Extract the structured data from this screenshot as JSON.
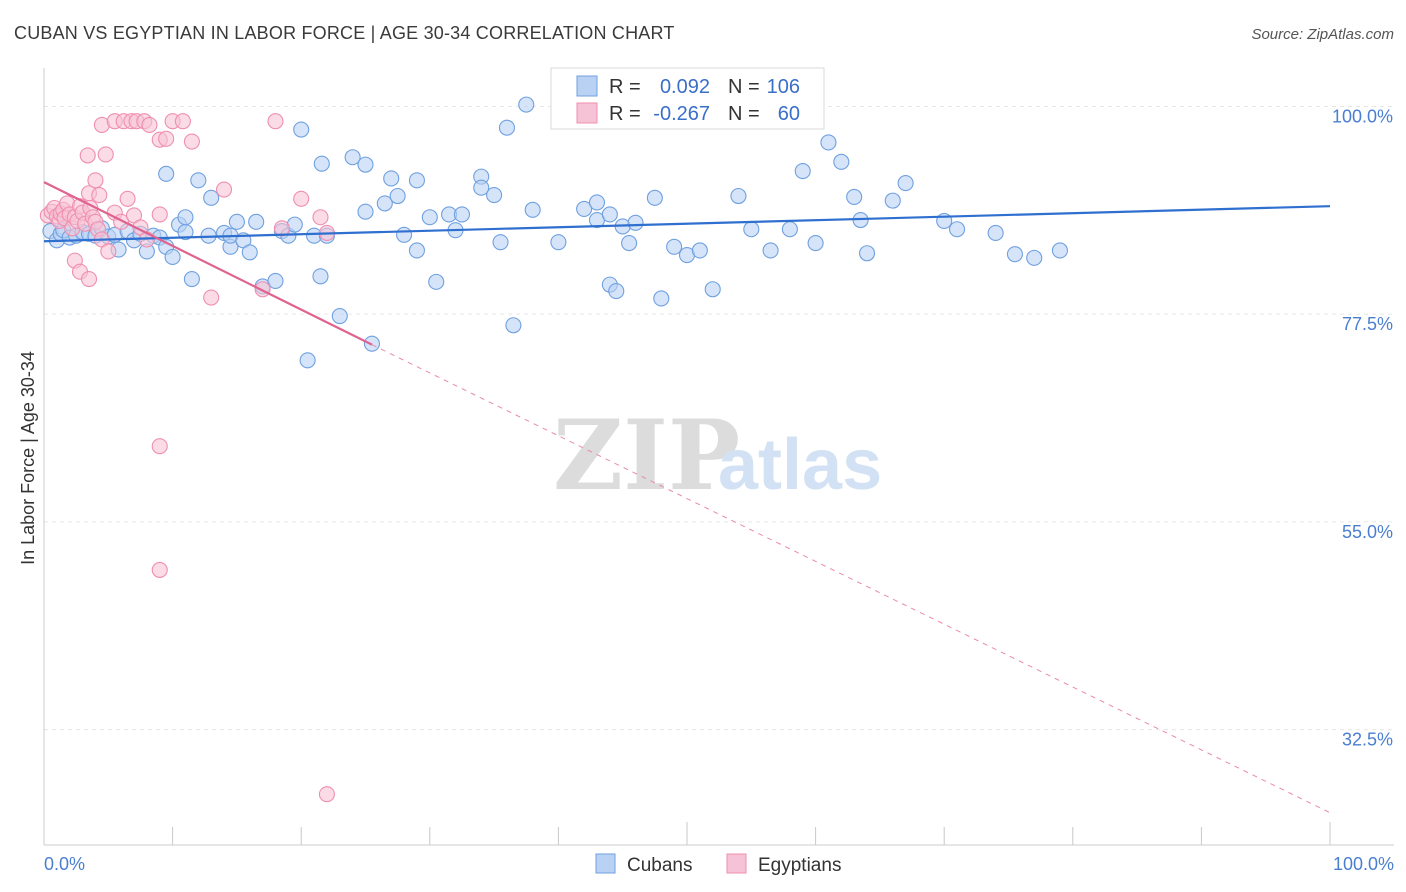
{
  "chart_data": {
    "type": "scatter",
    "title": "CUBAN VS EGYPTIAN IN LABOR FORCE | AGE 30-34 CORRELATION CHART",
    "source": "Source: ZipAtlas.com",
    "xlabel": "",
    "ylabel": "In Labor Force | Age 30-34",
    "xlim": [
      0,
      100
    ],
    "ylim": [
      20,
      102
    ],
    "y_ticks": [
      {
        "value": 100,
        "label": "100.0%"
      },
      {
        "value": 77.5,
        "label": "77.5%"
      },
      {
        "value": 55,
        "label": "55.0%"
      },
      {
        "value": 32.5,
        "label": "32.5%"
      }
    ],
    "x_ticks": [
      {
        "value": 0,
        "label": "0.0%"
      },
      {
        "value": 100,
        "label": "100.0%"
      }
    ],
    "watermark": {
      "zip": "ZIP",
      "atlas": "atlas"
    },
    "legend": {
      "r_label": "R =",
      "n_label": "N =",
      "entries": [
        {
          "r": "0.092",
          "n": "106"
        },
        {
          "r": "-0.267",
          "n": "60"
        }
      ]
    },
    "series": [
      {
        "name": "Cubans",
        "color": "#6fa0e0",
        "fill": "#b9d2f3",
        "trend": {
          "x": [
            0,
            100
          ],
          "y": [
            85.4,
            89.2
          ],
          "color": "#2f6fcf"
        },
        "points": [
          [
            0.5,
            86.5
          ],
          [
            1,
            85.5
          ],
          [
            1.3,
            86.2
          ],
          [
            1.5,
            86.6
          ],
          [
            2,
            85.8
          ],
          [
            2.5,
            86.0
          ],
          [
            3,
            86.4
          ],
          [
            3.5,
            86.2
          ],
          [
            4,
            86.0
          ],
          [
            4.5,
            86.8
          ],
          [
            5,
            85.9
          ],
          [
            5.5,
            86.1
          ],
          [
            5.8,
            84.5
          ],
          [
            6.5,
            86.5
          ],
          [
            7,
            85.5
          ],
          [
            7.5,
            86.2
          ],
          [
            8,
            84.3
          ],
          [
            8.5,
            86.0
          ],
          [
            9,
            85.8
          ],
          [
            9.5,
            84.8
          ],
          [
            9.5,
            92.7
          ],
          [
            10,
            83.7
          ],
          [
            10.5,
            87.2
          ],
          [
            11,
            86.4
          ],
          [
            11,
            88.0
          ],
          [
            11.5,
            81.3
          ],
          [
            12,
            92.0
          ],
          [
            12.8,
            86.0
          ],
          [
            13,
            90.1
          ],
          [
            14,
            86.3
          ],
          [
            14.5,
            84.8
          ],
          [
            14.5,
            86.0
          ],
          [
            15,
            87.5
          ],
          [
            15.5,
            85.5
          ],
          [
            16,
            84.2
          ],
          [
            16.5,
            87.5
          ],
          [
            17,
            80.5
          ],
          [
            18,
            81.1
          ],
          [
            18.5,
            86.5
          ],
          [
            19,
            86.0
          ],
          [
            19.5,
            87.2
          ],
          [
            20,
            97.5
          ],
          [
            20.5,
            72.5
          ],
          [
            21,
            86.0
          ],
          [
            21.5,
            81.6
          ],
          [
            21.6,
            93.8
          ],
          [
            22,
            86.0
          ],
          [
            23,
            77.3
          ],
          [
            24,
            94.5
          ],
          [
            25,
            93.7
          ],
          [
            25,
            88.6
          ],
          [
            25.5,
            74.3
          ],
          [
            26.5,
            89.5
          ],
          [
            27,
            92.2
          ],
          [
            27.5,
            90.3
          ],
          [
            28,
            86.1
          ],
          [
            29,
            92.0
          ],
          [
            29,
            84.4
          ],
          [
            30,
            88.0
          ],
          [
            30.5,
            81.0
          ],
          [
            31.5,
            88.3
          ],
          [
            32,
            86.6
          ],
          [
            32.5,
            88.3
          ],
          [
            34,
            92.4
          ],
          [
            34,
            91.2
          ],
          [
            35,
            90.4
          ],
          [
            35.5,
            85.3
          ],
          [
            36,
            97.7
          ],
          [
            36.5,
            76.3
          ],
          [
            37.5,
            100.2
          ],
          [
            38,
            88.8
          ],
          [
            40,
            85.3
          ],
          [
            42,
            88.9
          ],
          [
            43,
            87.7
          ],
          [
            43,
            89.6
          ],
          [
            44,
            80.7
          ],
          [
            44,
            88.3
          ],
          [
            44.5,
            80.0
          ],
          [
            45,
            87.0
          ],
          [
            45.5,
            85.2
          ],
          [
            46,
            87.4
          ],
          [
            47.5,
            90.1
          ],
          [
            48,
            79.2
          ],
          [
            49,
            84.8
          ],
          [
            50,
            83.9
          ],
          [
            51,
            84.4
          ],
          [
            52,
            80.2
          ],
          [
            54,
            90.3
          ],
          [
            55,
            86.7
          ],
          [
            56.5,
            84.4
          ],
          [
            58,
            86.7
          ],
          [
            59,
            93.0
          ],
          [
            60,
            85.2
          ],
          [
            61,
            96.1
          ],
          [
            62,
            94.0
          ],
          [
            63,
            90.2
          ],
          [
            63.5,
            87.7
          ],
          [
            64,
            84.1
          ],
          [
            66,
            89.8
          ],
          [
            67,
            91.7
          ],
          [
            70,
            87.6
          ],
          [
            71,
            86.7
          ],
          [
            74,
            86.3
          ],
          [
            75.5,
            84.0
          ],
          [
            77,
            83.6
          ],
          [
            79,
            84.4
          ]
        ]
      },
      {
        "name": "Egyptians",
        "color": "#ef8fb0",
        "fill": "#f6c3d6",
        "trend_solid": {
          "x": [
            0,
            25.5
          ],
          "y": [
            91.8,
            74.2
          ],
          "color": "#e0638f"
        },
        "trend_dashed": {
          "x": [
            25.5,
            100
          ],
          "y": [
            74.2,
            23.5
          ],
          "color": "#e98aab"
        },
        "points": [
          [
            0.3,
            88.2
          ],
          [
            0.6,
            88.6
          ],
          [
            0.8,
            89.0
          ],
          [
            1,
            88.1
          ],
          [
            1.2,
            87.6
          ],
          [
            1.3,
            88.4
          ],
          [
            1.5,
            88.8
          ],
          [
            1.6,
            87.9
          ],
          [
            1.8,
            89.5
          ],
          [
            2,
            88.3
          ],
          [
            2.2,
            86.8
          ],
          [
            2.4,
            88.0
          ],
          [
            2.6,
            87.6
          ],
          [
            2.8,
            89.2
          ],
          [
            3,
            88.5
          ],
          [
            3.2,
            87.3
          ],
          [
            3.5,
            90.6
          ],
          [
            3.6,
            89.0
          ],
          [
            3.8,
            88.0
          ],
          [
            4.0,
            87.5
          ],
          [
            4.2,
            86.7
          ],
          [
            4.5,
            85.6
          ],
          [
            5,
            84.3
          ],
          [
            5.5,
            88.5
          ],
          [
            6,
            87.5
          ],
          [
            6.5,
            90.0
          ],
          [
            7,
            88.2
          ],
          [
            7.5,
            86.9
          ],
          [
            8,
            85.6
          ],
          [
            9,
            88.3
          ],
          [
            2.4,
            83.3
          ],
          [
            2.8,
            82.1
          ],
          [
            3.5,
            81.3
          ],
          [
            3.4,
            94.7
          ],
          [
            4.0,
            92.0
          ],
          [
            4.3,
            90.4
          ],
          [
            4.5,
            98.0
          ],
          [
            4.8,
            94.8
          ],
          [
            5.5,
            98.4
          ],
          [
            6.2,
            98.4
          ],
          [
            6.8,
            98.4
          ],
          [
            7.2,
            98.4
          ],
          [
            7.8,
            98.4
          ],
          [
            8.2,
            98.0
          ],
          [
            9.0,
            96.4
          ],
          [
            9.5,
            96.5
          ],
          [
            10,
            98.4
          ],
          [
            10.8,
            98.4
          ],
          [
            11.5,
            96.2
          ],
          [
            13,
            79.3
          ],
          [
            14,
            91.0
          ],
          [
            17,
            80.2
          ],
          [
            18,
            98.4
          ],
          [
            18.5,
            86.8
          ],
          [
            20,
            90.0
          ],
          [
            21.5,
            88.0
          ],
          [
            22,
            86.3
          ],
          [
            9,
            63.2
          ],
          [
            9,
            49.8
          ],
          [
            22,
            25.5
          ]
        ]
      }
    ]
  },
  "bottom_legend": [
    {
      "label": "Cubans"
    },
    {
      "label": "Egyptians"
    }
  ]
}
